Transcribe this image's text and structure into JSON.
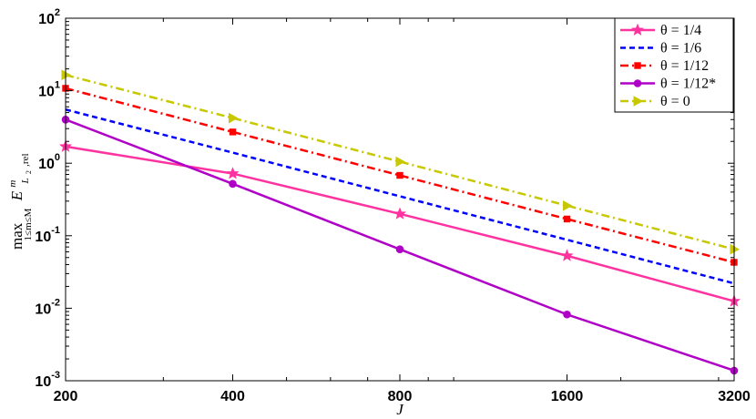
{
  "chart_data": {
    "type": "line",
    "x_scale": "log",
    "y_scale": "log",
    "xlim": [
      200,
      3200
    ],
    "ylim": [
      0.001,
      100
    ],
    "x": [
      200,
      400,
      800,
      1600,
      3200
    ],
    "x_tick_labels": [
      "200",
      "400",
      "800",
      "1600",
      "3200"
    ],
    "y_ticks": [
      {
        "base": "10",
        "exp": "-3"
      },
      {
        "base": "10",
        "exp": "-2"
      },
      {
        "base": "10",
        "exp": "-1"
      },
      {
        "base": "10",
        "exp": "0"
      },
      {
        "base": "10",
        "exp": "1"
      },
      {
        "base": "10",
        "exp": "2"
      }
    ],
    "xlabel": "J",
    "ylabel": {
      "max": "max",
      "sub": "1≤m≤M",
      "E": "E",
      "sup": "m",
      "sub2": "L",
      "sub2_index": "2",
      "sub2_rest": ",rel"
    },
    "legend_position": "top-right",
    "grid": false,
    "series": [
      {
        "name": "θ = 1/4",
        "color": "#ff33a0",
        "dash": "solid",
        "marker": "star",
        "values": [
          1.7,
          0.72,
          0.2,
          0.053,
          0.0125
        ]
      },
      {
        "name": "θ = 1/6",
        "color": "#0000ff",
        "dash": "dash",
        "marker": "none",
        "values": [
          5.5,
          1.4,
          0.35,
          0.088,
          0.022
        ]
      },
      {
        "name": "θ = 1/12",
        "color": "#ff0000",
        "dash": "dashdot",
        "marker": "square",
        "values": [
          10.8,
          2.7,
          0.68,
          0.17,
          0.043
        ]
      },
      {
        "name": "θ = 1/12*",
        "color": "#b000c8",
        "dash": "solid",
        "marker": "circle",
        "values": [
          4.0,
          0.52,
          0.065,
          0.0082,
          0.00138
        ]
      },
      {
        "name": "θ = 0",
        "color": "#c8c800",
        "dash": "dashdot",
        "marker": "triangle-right",
        "values": [
          16.5,
          4.2,
          1.05,
          0.26,
          0.065
        ]
      }
    ]
  }
}
